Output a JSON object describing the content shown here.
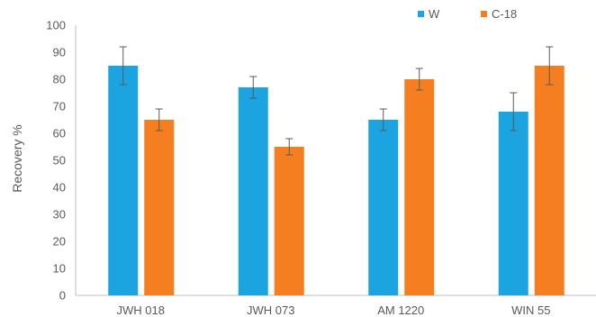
{
  "chart_data": {
    "type": "bar",
    "title": "",
    "xlabel": "",
    "ylabel": "Recovery %",
    "ylim": [
      0,
      100
    ],
    "yticks": [
      0,
      10,
      20,
      30,
      40,
      50,
      60,
      70,
      80,
      90,
      100
    ],
    "categories": [
      "JWH 018",
      "JWH 073",
      "AM 1220",
      "WIN 55"
    ],
    "series": [
      {
        "name": "W",
        "color": "#1BA4DF",
        "values": [
          85,
          77,
          65,
          68
        ],
        "errors": [
          7,
          4,
          4,
          7
        ]
      },
      {
        "name": "C-18",
        "color": "#F57F20",
        "values": [
          65,
          55,
          80,
          85
        ],
        "errors": [
          4,
          3,
          4,
          7
        ]
      }
    ],
    "legend_position": "top-right",
    "grid": false,
    "error_bar_color": "#595959",
    "axis_color": "#BFBFBF"
  }
}
